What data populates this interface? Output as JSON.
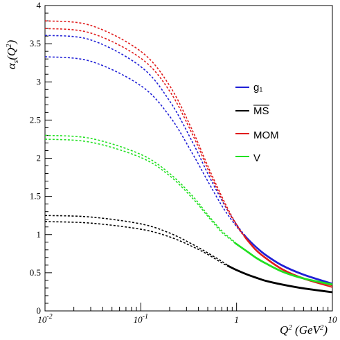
{
  "chart_data": {
    "type": "line",
    "title": "",
    "xlabel": "Q² (GeV²)",
    "ylabel": "αs(Q²)",
    "xscale": "log",
    "xlim": [
      0.01,
      10
    ],
    "ylim": [
      0,
      4
    ],
    "xticks": [
      "10-2",
      "10-1",
      "1",
      "10"
    ],
    "yticks": [
      "0",
      "0.5",
      "1",
      "1.5",
      "2",
      "2.5",
      "3",
      "3.5",
      "4"
    ],
    "grid": false,
    "legend_position": "right-middle",
    "colors": {
      "g1": "#1f1fd6",
      "msbar": "#000000",
      "mom": "#e01b1b",
      "v": "#22e022"
    },
    "legend": [
      {
        "key": "g1",
        "label": "g₁"
      },
      {
        "key": "msbar",
        "label": "MS"
      },
      {
        "key": "mom",
        "label": "MOM"
      },
      {
        "key": "v",
        "label": "V"
      }
    ],
    "series": [
      {
        "name": "g₁",
        "key": "g1",
        "band": "upper",
        "x": [
          0.01,
          0.03,
          0.1,
          0.2,
          0.35,
          0.5,
          0.7,
          0.9,
          1.1,
          1.3,
          1.6,
          2,
          3,
          5,
          10
        ],
        "y": [
          3.61,
          3.55,
          3.2,
          2.75,
          2.2,
          1.8,
          1.45,
          1.22,
          1.06,
          0.95,
          0.84,
          0.74,
          0.6,
          0.48,
          0.36
        ]
      },
      {
        "name": "g₁",
        "key": "g1",
        "band": "lower",
        "x": [
          0.01,
          0.03,
          0.1,
          0.2,
          0.35,
          0.5,
          0.7,
          0.9,
          1.1,
          1.3,
          1.6,
          2,
          3,
          5,
          10
        ],
        "y": [
          3.33,
          3.27,
          2.95,
          2.55,
          2.05,
          1.7,
          1.38,
          1.18,
          1.04,
          0.94,
          0.83,
          0.73,
          0.59,
          0.47,
          0.35
        ]
      },
      {
        "name": "MOM",
        "key": "mom",
        "band": "upper",
        "x": [
          0.01,
          0.03,
          0.1,
          0.2,
          0.35,
          0.5,
          0.7,
          0.9,
          1.1,
          1.3,
          1.6,
          2,
          3,
          5,
          10
        ],
        "y": [
          3.8,
          3.74,
          3.4,
          2.95,
          2.35,
          1.9,
          1.5,
          1.23,
          1.05,
          0.93,
          0.8,
          0.7,
          0.55,
          0.43,
          0.33
        ]
      },
      {
        "name": "MOM",
        "key": "mom",
        "band": "lower",
        "x": [
          0.01,
          0.03,
          0.1,
          0.2,
          0.35,
          0.5,
          0.7,
          0.9,
          1.1,
          1.3,
          1.6,
          2,
          3,
          5,
          10
        ],
        "y": [
          3.7,
          3.64,
          3.31,
          2.88,
          2.3,
          1.86,
          1.47,
          1.21,
          1.04,
          0.92,
          0.79,
          0.69,
          0.54,
          0.42,
          0.31
        ]
      },
      {
        "name": "V",
        "key": "v",
        "band": "upper",
        "x": [
          0.01,
          0.03,
          0.1,
          0.2,
          0.35,
          0.5,
          0.7,
          0.9,
          1,
          1.3,
          1.6,
          2,
          3,
          5,
          10
        ],
        "y": [
          2.3,
          2.26,
          2.05,
          1.8,
          1.5,
          1.26,
          1.05,
          0.93,
          0.88,
          0.78,
          0.7,
          0.63,
          0.52,
          0.43,
          0.35
        ]
      },
      {
        "name": "V",
        "key": "v",
        "band": "lower",
        "x": [
          0.01,
          0.03,
          0.1,
          0.2,
          0.35,
          0.5,
          0.7,
          0.9,
          1,
          1.3,
          1.6,
          2,
          3,
          5,
          10
        ],
        "y": [
          2.25,
          2.21,
          2.01,
          1.77,
          1.47,
          1.24,
          1.03,
          0.92,
          0.87,
          0.77,
          0.69,
          0.62,
          0.51,
          0.42,
          0.34
        ]
      },
      {
        "name": "MS",
        "key": "msbar",
        "band": "upper",
        "x": [
          0.01,
          0.03,
          0.1,
          0.2,
          0.35,
          0.5,
          0.7,
          0.8,
          1,
          1.3,
          1.6,
          2,
          3,
          5,
          10
        ],
        "y": [
          1.25,
          1.23,
          1.14,
          1.02,
          0.87,
          0.76,
          0.65,
          0.6,
          0.54,
          0.48,
          0.44,
          0.4,
          0.35,
          0.3,
          0.25
        ]
      },
      {
        "name": "MS",
        "key": "msbar",
        "band": "lower",
        "x": [
          0.01,
          0.03,
          0.1,
          0.2,
          0.35,
          0.5,
          0.7,
          0.8,
          1,
          1.3,
          1.6,
          2,
          3,
          5,
          10
        ],
        "y": [
          1.17,
          1.15,
          1.07,
          0.97,
          0.84,
          0.74,
          0.63,
          0.59,
          0.53,
          0.47,
          0.43,
          0.39,
          0.34,
          0.29,
          0.24
        ]
      }
    ],
    "solid_from_x": {
      "g1": 1.2,
      "mom": 1.2,
      "v": 0.95,
      "msbar": 0.8
    }
  }
}
